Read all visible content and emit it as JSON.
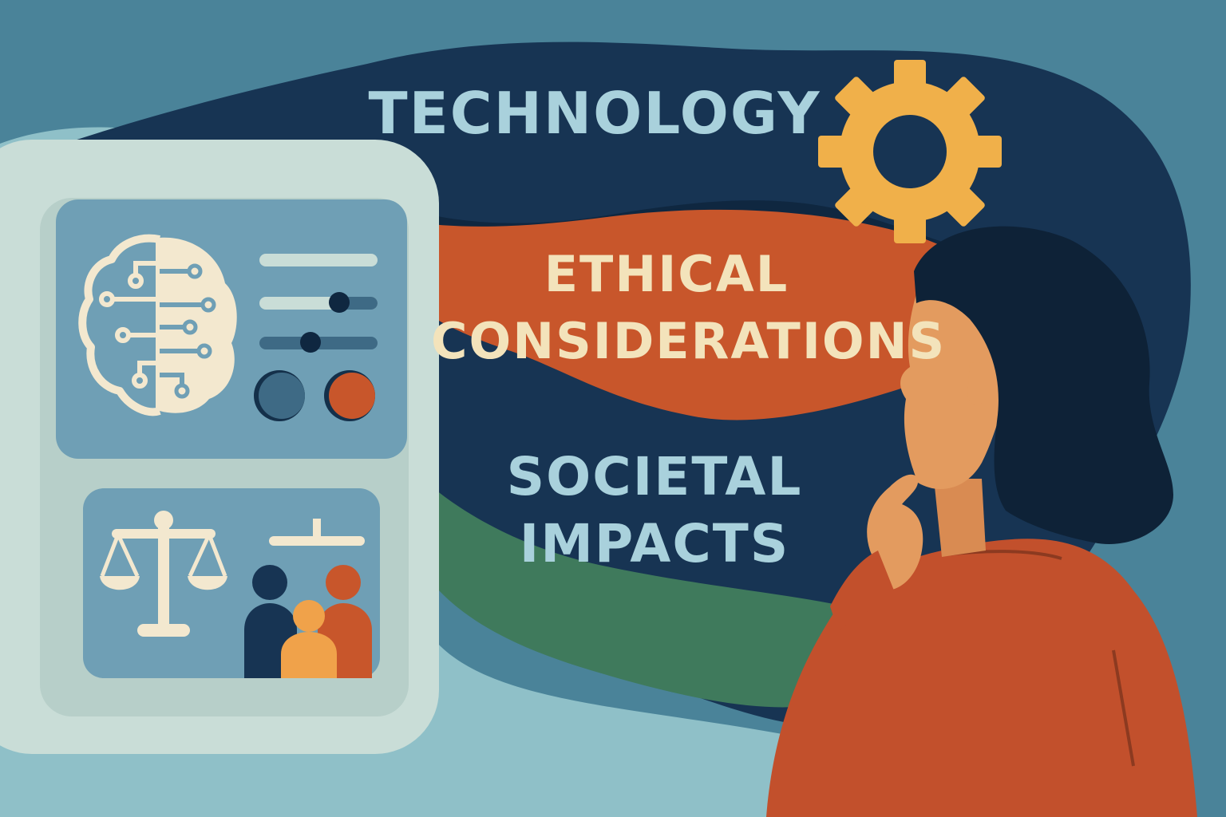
{
  "labels": {
    "technology": "TECHNOLOGY",
    "ethical_line1": "ETHICAL",
    "ethical_line2": "CONSIDERATIONS",
    "societal_line1": "SOCIETAL",
    "societal_line2": "IMPACTS"
  },
  "icons": [
    "gear-icon",
    "brain-circuit-icon",
    "balance-scale-icon",
    "people-group-icon",
    "slider-icon",
    "toggle-circle-icon"
  ],
  "colors": {
    "background": "#4a8399",
    "navy": "#173453",
    "deep_navy": "#0f2740",
    "orange_band": "#c8562b",
    "green_band": "#3f7a5c",
    "panel_light": "#c9ddd7",
    "panel_blue": "#6f9fb5",
    "cream_text": "#f3e3bb",
    "light_blue_text": "#a9d1dc",
    "gear": "#f0b04a",
    "shirt": "#c2502c",
    "skin": "#e39b5f",
    "hair": "#0e2237"
  }
}
